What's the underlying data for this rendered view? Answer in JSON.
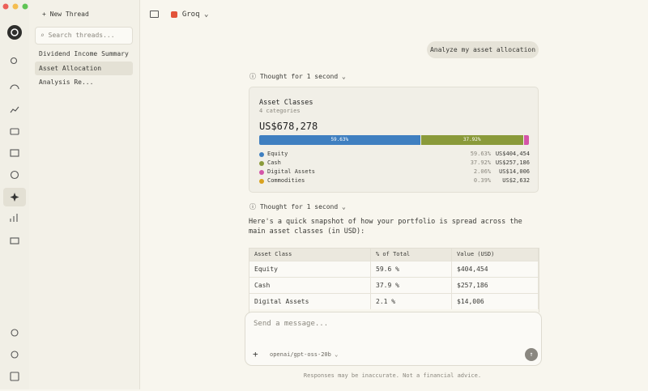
{
  "sidebar": {
    "new_thread": "New Thread",
    "search_placeholder": "Search threads...",
    "threads": [
      "Dividend Income Summary",
      "Asset Allocation Analysis Re..."
    ]
  },
  "header": {
    "provider": "Groq"
  },
  "conversation": {
    "user_message": "Analyze my asset allocation",
    "thoughts": [
      "Thought for 1 second",
      "Thought for 1 second"
    ],
    "card": {
      "title": "Asset Classes",
      "subtitle": "4 categories",
      "total": "US$678,278",
      "items": [
        {
          "name": "Equity",
          "color": "#3f7fc0",
          "percent": 59.63,
          "percent_label": "59.63%",
          "value": "US$404,454"
        },
        {
          "name": "Cash",
          "color": "#8a9a3a",
          "percent": 37.92,
          "percent_label": "37.92%",
          "value": "US$257,186"
        },
        {
          "name": "Digital Assets",
          "color": "#d455a8",
          "percent": 2.06,
          "percent_label": "2.06%",
          "value": "US$14,006"
        },
        {
          "name": "Commodities",
          "color": "#d9a21f",
          "percent": 0.39,
          "percent_label": "0.39%",
          "value": "US$2,632"
        }
      ]
    },
    "reply": "Here's a quick snapshot of how your portfolio is spread across the main asset classes (in USD):",
    "table": {
      "header": [
        "Asset Class",
        "% of Total",
        "Value (USD)"
      ],
      "rows": [
        [
          "Equity",
          "59.6 %",
          "$404,454"
        ],
        [
          "Cash",
          "37.9 %",
          "$257,186"
        ],
        [
          "Digital Assets",
          "2.1 %",
          "$14,006"
        ]
      ]
    }
  },
  "composer": {
    "placeholder": "Send a message...",
    "model": "openai/gpt-oss-20b",
    "disclaimer": "Responses may be inaccurate. Not a financial advice."
  }
}
